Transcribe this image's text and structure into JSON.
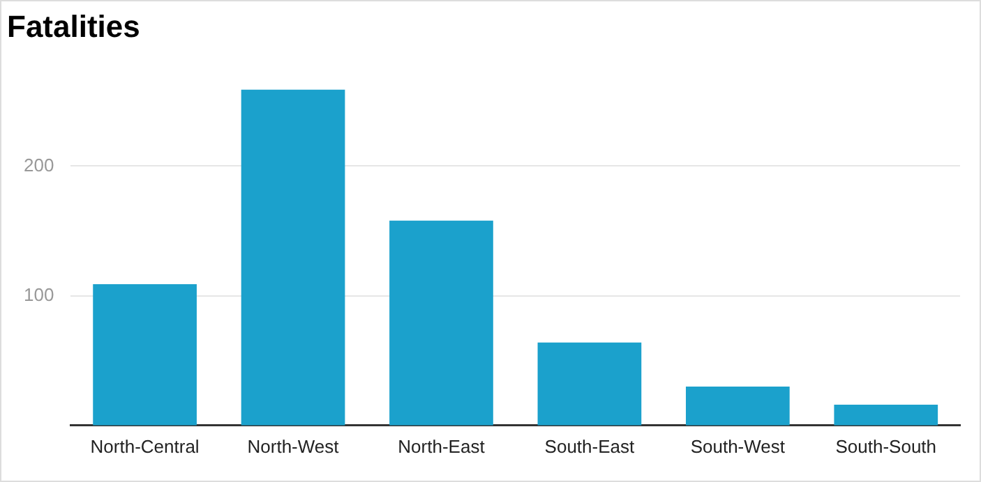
{
  "chart_data": {
    "type": "bar",
    "title": "Fatalities",
    "categories": [
      "North-Central",
      "North-West",
      "North-East",
      "South-East",
      "South-West",
      "South-South"
    ],
    "values": [
      109,
      259,
      158,
      64,
      30,
      16
    ],
    "color": "#1ba1cc",
    "ylim": [
      0,
      260
    ],
    "yticks": [
      100,
      200
    ],
    "grid": "y",
    "legend": false
  }
}
